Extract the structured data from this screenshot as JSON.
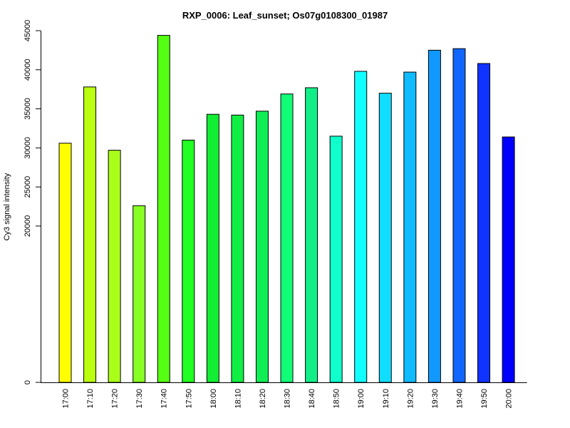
{
  "chart_data": {
    "type": "bar",
    "title": "RXP_0006: Leaf_sunset; Os07g0108300_01987",
    "xlabel": "",
    "ylabel": "Cy3 signal intensity",
    "categories": [
      "17:00",
      "17:10",
      "17:20",
      "17:30",
      "17:40",
      "17:50",
      "18:00",
      "18:10",
      "18:20",
      "18:30",
      "18:40",
      "18:50",
      "19:00",
      "19:10",
      "19:20",
      "19:30",
      "19:40",
      "19:50",
      "20:00"
    ],
    "values": [
      30600,
      37800,
      29700,
      22600,
      44400,
      31000,
      34300,
      34200,
      34700,
      36900,
      37700,
      31500,
      39800,
      37000,
      39700,
      42500,
      42700,
      40800,
      31400
    ],
    "colors": [
      "#ffff00",
      "#bbff11",
      "#aaff1a",
      "#88ff22",
      "#55ff11",
      "#22ff22",
      "#11ee33",
      "#11ee44",
      "#11ee55",
      "#11ff77",
      "#11ee88",
      "#11ffcc",
      "#11ffff",
      "#11ddff",
      "#11bbff",
      "#1199ff",
      "#1166ff",
      "#1133ff",
      "#0000ff"
    ],
    "ylim": [
      0,
      45000
    ],
    "yticks": [
      0,
      20000,
      25000,
      30000,
      35000,
      40000,
      45000
    ],
    "ytick_labels": [
      "0",
      "20000",
      "25000",
      "30000",
      "35000",
      "40000",
      "45000"
    ],
    "grid": false,
    "legend": "none"
  }
}
